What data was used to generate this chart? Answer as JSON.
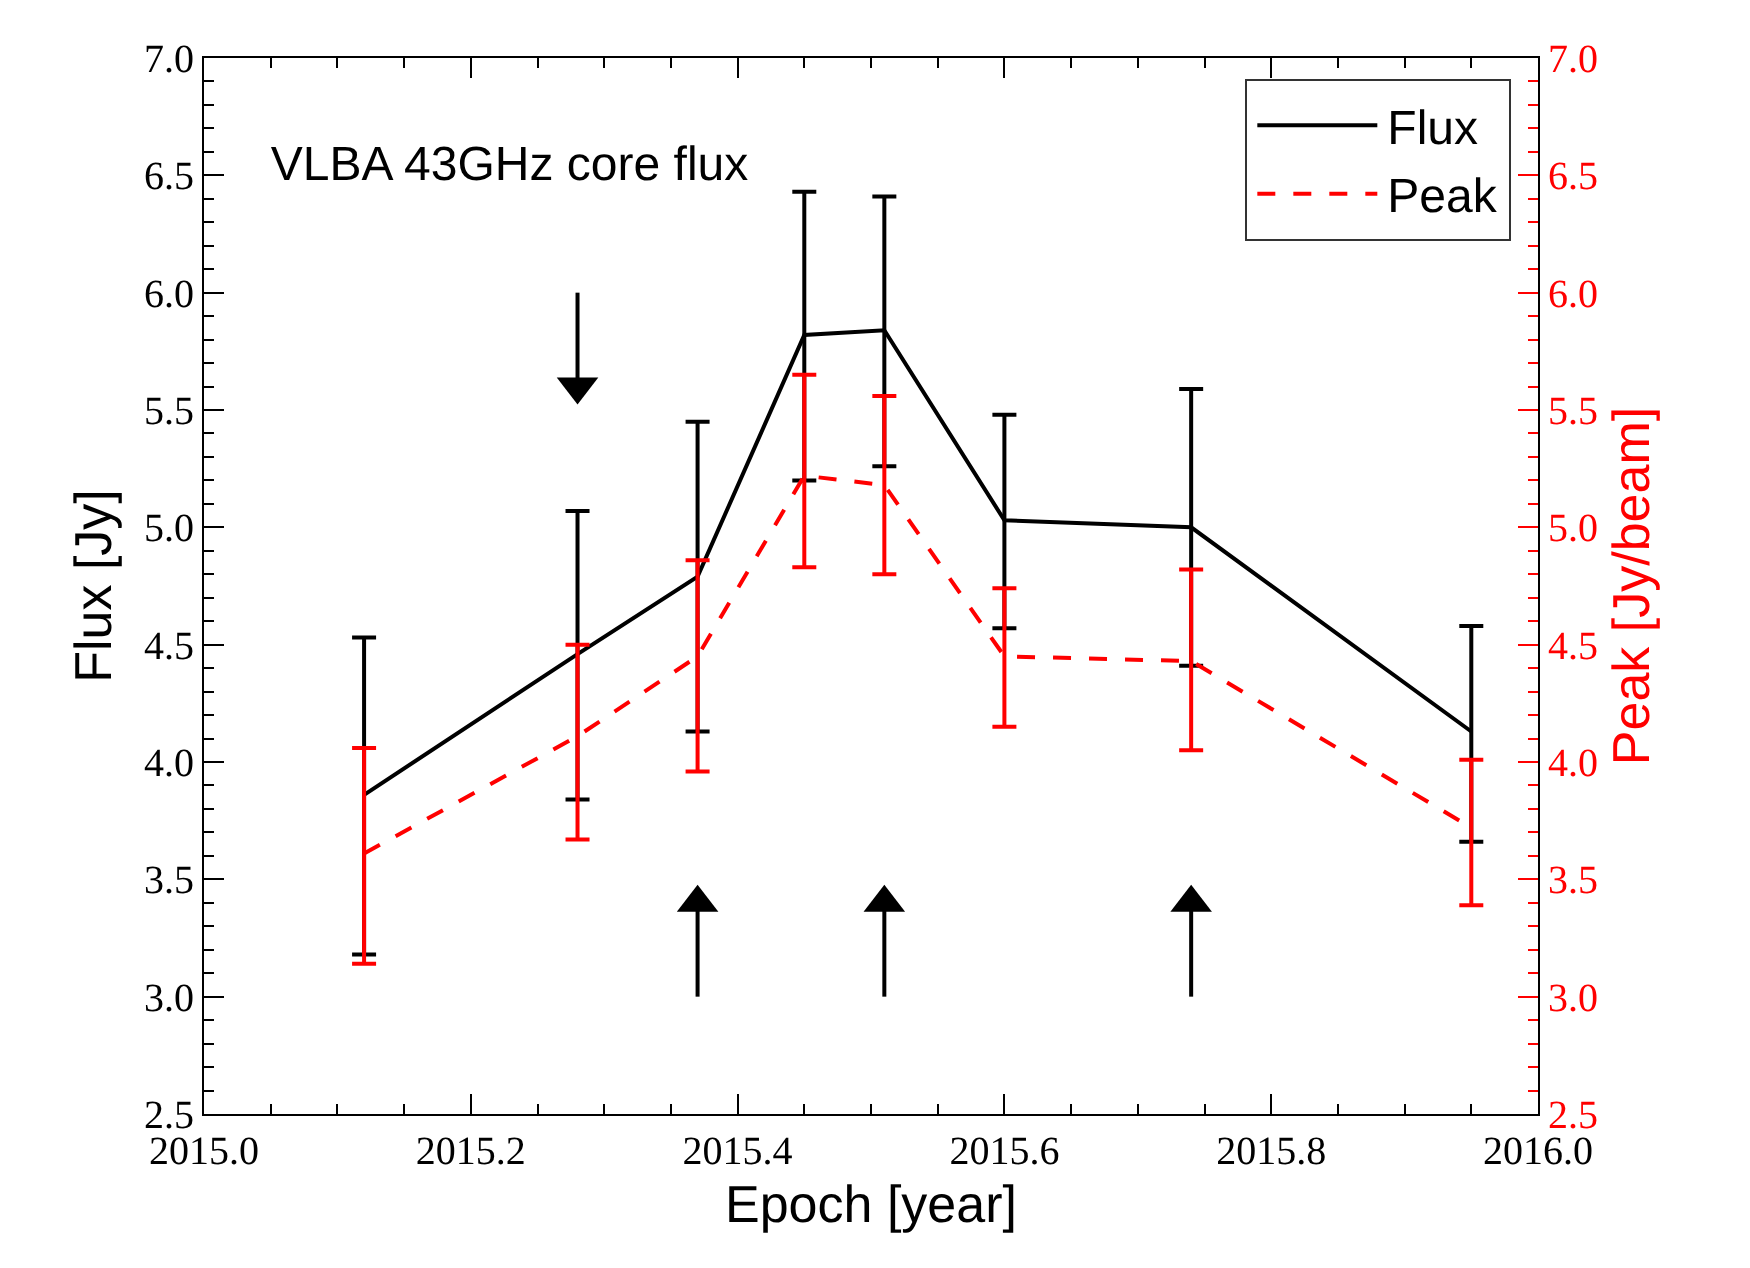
{
  "chart_data": {
    "type": "line",
    "title": "VLBA 43GHz core flux",
    "xlabel": "Epoch [year]",
    "ylabel": "Flux [Jy]",
    "y2label": "Peak [Jy/beam]",
    "x": [
      2015.12,
      2015.28,
      2015.37,
      2015.45,
      2015.51,
      2015.6,
      2015.74,
      2015.95
    ],
    "series": [
      {
        "name": "Flux",
        "color": "#000000",
        "line_style": "solid",
        "values": [
          3.86,
          4.46,
          4.79,
          5.82,
          5.84,
          5.03,
          5.0,
          4.13
        ],
        "errors": [
          [
            3.18,
            4.53
          ],
          [
            3.84,
            5.07
          ],
          [
            4.13,
            5.45
          ],
          [
            5.2,
            6.43
          ],
          [
            5.26,
            6.41
          ],
          [
            4.57,
            5.48
          ],
          [
            4.41,
            5.59
          ],
          [
            3.66,
            4.58
          ]
        ]
      },
      {
        "name": "Peak",
        "color": "#ff0000",
        "line_style": "dashed",
        "axis": "y2",
        "values": [
          3.61,
          4.11,
          4.45,
          5.22,
          5.18,
          4.45,
          4.43,
          3.72
        ],
        "errors": [
          [
            3.14,
            4.06
          ],
          [
            3.67,
            4.5
          ],
          [
            3.96,
            4.86
          ],
          [
            4.83,
            5.65
          ],
          [
            4.8,
            5.56
          ],
          [
            4.15,
            4.74
          ],
          [
            4.05,
            4.82
          ],
          [
            3.39,
            4.01
          ]
        ]
      },
      {
        "type": "line",
        "color": "#000000",
        "marker": "triangle",
        "x": [
          2015.28,
          2015.28
        ],
        "values": [
          6.0,
          5.6
        ]
      },
      {
        "type": "line",
        "color": "#000000",
        "marker": "triangle",
        "x": [
          2015.37,
          2015.37
        ],
        "values": [
          3.0,
          3.4
        ]
      },
      {
        "type": "line",
        "color": "#000000",
        "marker": "triangle",
        "x": [
          2015.51,
          2015.51
        ],
        "values": [
          3.0,
          3.4
        ]
      },
      {
        "type": "line",
        "color": "#000000",
        "marker": "triangle",
        "x": [
          2015.74,
          2015.74
        ],
        "values": [
          3.0,
          3.4
        ]
      }
    ],
    "xlim": [
      2015.0,
      2016.0
    ],
    "xticks": [
      {
        "value": 2015.0,
        "label": "2015.0"
      },
      2015.2,
      2015.4,
      2015.6,
      2015.8,
      {
        "value": 2016.0,
        "label": "2016.0"
      }
    ],
    "ylim": [
      2.5,
      7.0
    ],
    "yticks": [
      2.5,
      {
        "value": 3.0,
        "label": "3.0"
      },
      3.5,
      {
        "value": 4.0,
        "label": "4.0"
      },
      4.5,
      {
        "value": 5.0,
        "label": "5.0"
      },
      5.5,
      {
        "value": 6.0,
        "label": "6.0"
      },
      6.5,
      {
        "value": 7.0,
        "label": "7.0"
      }
    ],
    "y2lim": [
      2.5,
      7.0
    ],
    "y2ticks": [
      2.5,
      {
        "value": 3.0,
        "label": "3.0"
      },
      3.5,
      {
        "value": 4.0,
        "label": "4.0"
      },
      4.5,
      {
        "value": 5.0,
        "label": "5.0"
      },
      5.5,
      {
        "value": 6.0,
        "label": "6.0"
      },
      6.5,
      {
        "value": 7.0,
        "label": "7.0"
      }
    ],
    "legend": "top right",
    "marker": "none"
  }
}
